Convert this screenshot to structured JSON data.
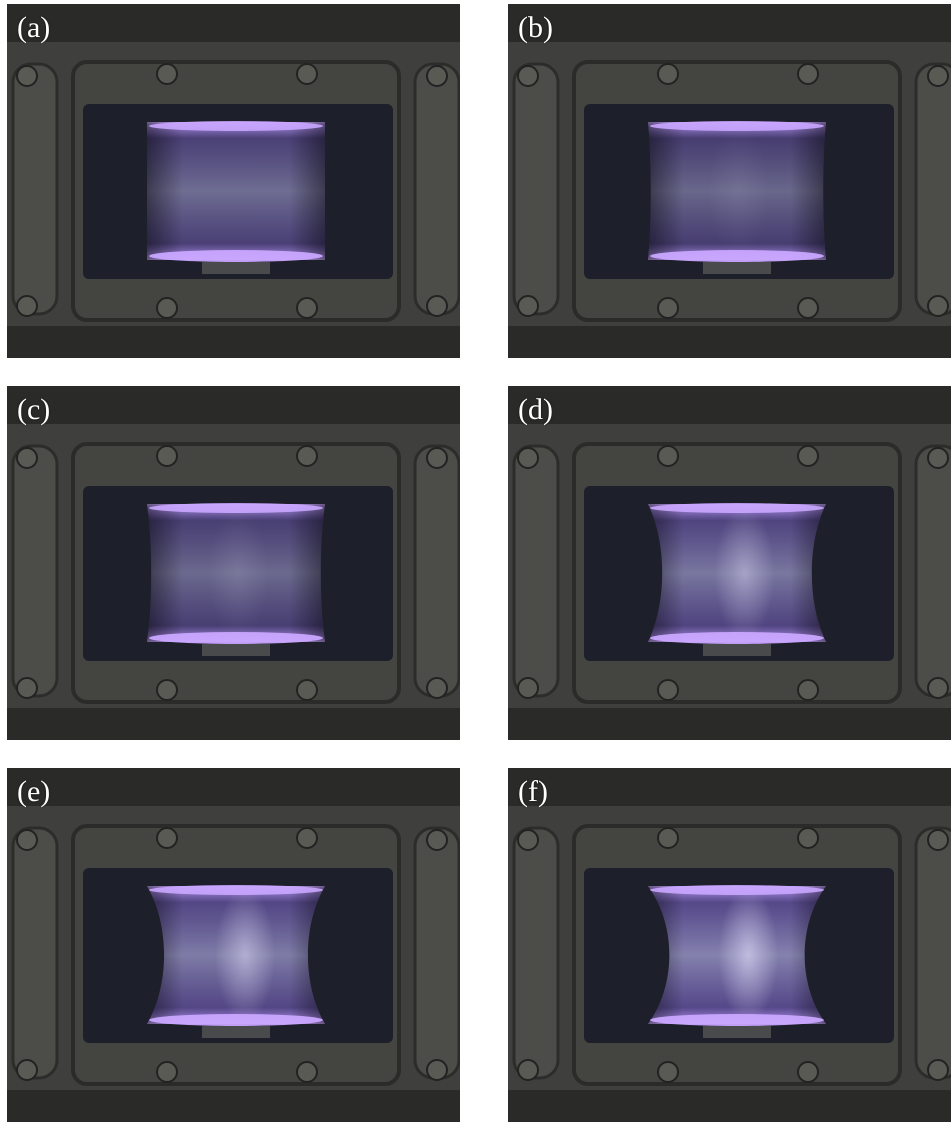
{
  "panels": [
    {
      "id": "a",
      "label": "(a)",
      "constriction": 0.0,
      "brightness": 0.75
    },
    {
      "id": "b",
      "label": "(b)",
      "constriction": 0.1,
      "brightness": 0.7
    },
    {
      "id": "c",
      "label": "(c)",
      "constriction": 0.15,
      "brightness": 0.72
    },
    {
      "id": "d",
      "label": "(d)",
      "constriction": 0.5,
      "brightness": 0.85
    },
    {
      "id": "e",
      "label": "(e)",
      "constriction": 0.6,
      "brightness": 0.9
    },
    {
      "id": "f",
      "label": "(f)",
      "constriction": 0.75,
      "brightness": 0.95
    }
  ],
  "colors": {
    "frame": "#3f403d",
    "frame_dark": "#2a2b29",
    "bolt": "#5a5a55",
    "window": "#1d1f2a",
    "plasma_core": "#b8b4f0",
    "plasma_edge": "#8a6fe0",
    "plasma_ring": "#c9a6ff"
  }
}
